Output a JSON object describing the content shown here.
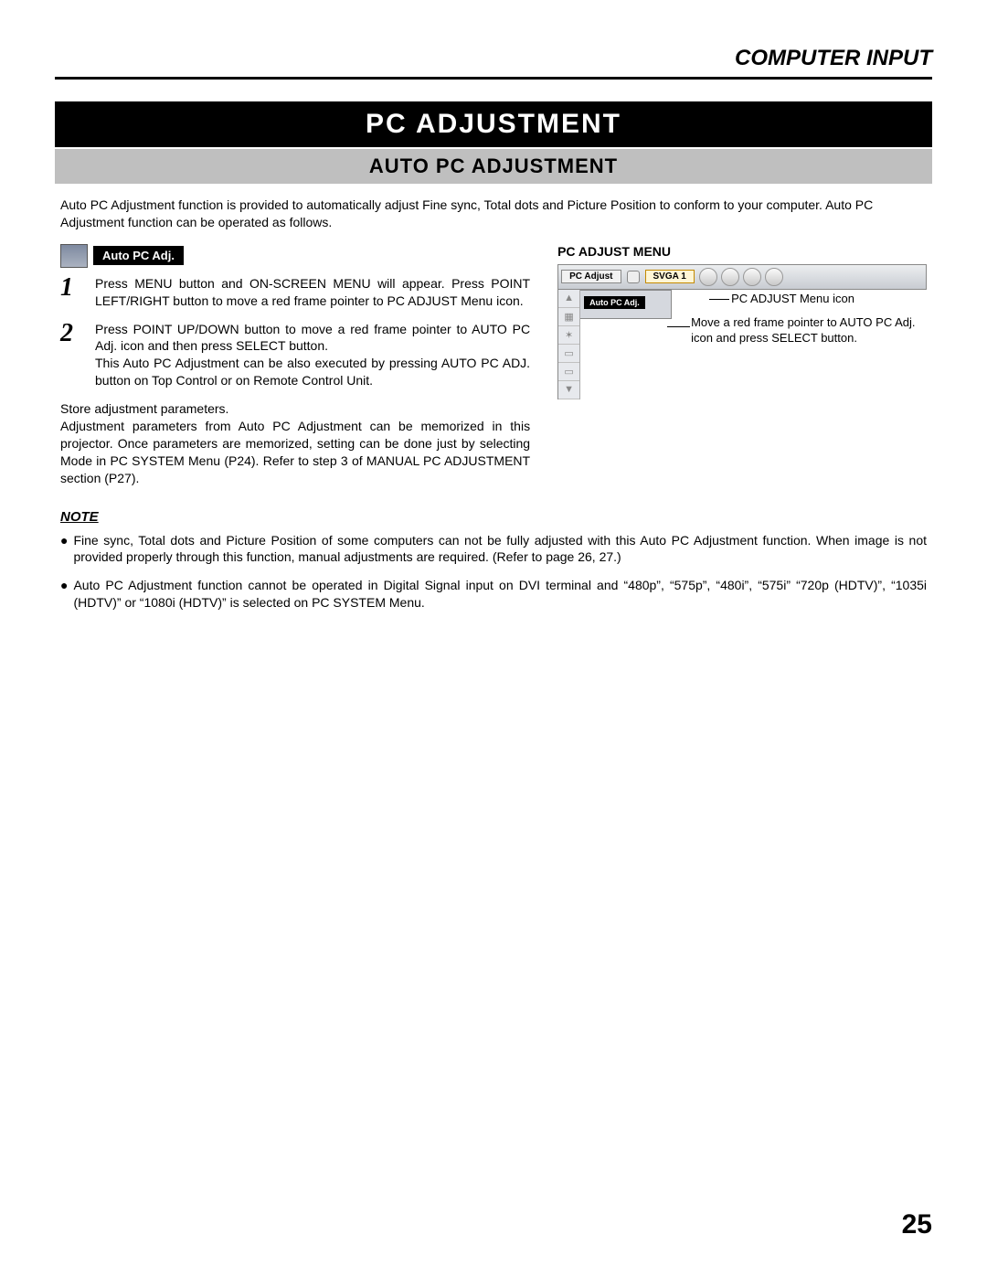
{
  "header": {
    "section": "COMPUTER INPUT"
  },
  "title": "PC ADJUSTMENT",
  "subtitle": "AUTO PC ADJUSTMENT",
  "intro": "Auto PC Adjustment function is provided to automatically adjust Fine sync, Total dots and Picture Position to conform to your computer.  Auto PC Adjustment function can be operated as follows.",
  "icon_label": "Auto PC Adj.",
  "steps": [
    {
      "num": "1",
      "text": "Press MENU button and ON-SCREEN MENU will appear.  Press POINT LEFT/RIGHT button to move a red frame pointer to PC ADJUST Menu icon."
    },
    {
      "num": "2",
      "text": "Press POINT UP/DOWN button to move a red frame pointer to AUTO PC Adj. icon and then press SELECT button.\nThis Auto PC Adjustment can be also executed by pressing AUTO PC ADJ. button on Top Control or on Remote Control Unit."
    }
  ],
  "store": "Store adjustment parameters.\nAdjustment parameters from Auto PC Adjustment can be memorized in this projector.  Once parameters are memorized, setting can be done just by selecting Mode in PC SYSTEM Menu (P24).  Refer to step 3 of MANUAL PC ADJUSTMENT section (P27).",
  "menu": {
    "title": "PC ADJUST MENU",
    "chip_pcadjust": "PC Adjust",
    "chip_svga": "SVGA 1",
    "panel_label": "Auto PC Adj.",
    "callout1": "PC ADJUST Menu icon",
    "callout2": "Move a red frame pointer to AUTO PC Adj. icon and press SELECT button."
  },
  "note_heading": "NOTE",
  "notes": [
    "Fine sync, Total dots and Picture Position of some computers can not be fully adjusted with this Auto PC Adjustment function.  When image is not provided properly through this function, manual adjustments are required.  (Refer to page 26, 27.)",
    "Auto PC Adjustment function cannot be operated in Digital Signal input on DVI terminal and “480p”, “575p”, “480i”, “575i” “720p (HDTV)”, “1035i (HDTV)” or “1080i (HDTV)” is selected on PC SYSTEM Menu."
  ],
  "page_number": "25"
}
